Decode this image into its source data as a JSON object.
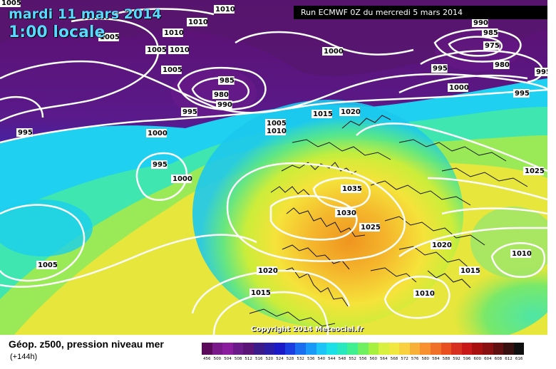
{
  "header": {
    "date": "mardi 11 mars 2014",
    "time": "1:00 locale",
    "run": "Run ECMWF 0Z du mercredi 5 mars 2014"
  },
  "footer": {
    "title": "Géop. z500, pression niveau mer",
    "subtitle": "(+144h)",
    "copyright": "Copyright 2014 Meteociel.fr"
  },
  "scale": {
    "labels": [
      "456",
      "500",
      "504",
      "508",
      "512",
      "516",
      "520",
      "524",
      "528",
      "532",
      "536",
      "540",
      "544",
      "548",
      "552",
      "556",
      "560",
      "564",
      "568",
      "572",
      "576",
      "580",
      "584",
      "588",
      "592",
      "596",
      "600",
      "604",
      "608",
      "612",
      "616"
    ],
    "colors": [
      "#5b0a5b",
      "#7a1a8a",
      "#8a1c9e",
      "#6b1a8a",
      "#5a1478",
      "#3b1a8a",
      "#2a1ea6",
      "#1a1ac8",
      "#1a3ee0",
      "#1a6ef0",
      "#1a9af8",
      "#1cc4f8",
      "#1ce0e8",
      "#28e8c0",
      "#40f090",
      "#70f060",
      "#a8f040",
      "#d8f040",
      "#f0e840",
      "#f8d040",
      "#f8b038",
      "#f89030",
      "#f07028",
      "#e85020",
      "#d83020",
      "#c81818",
      "#a81010",
      "#881010",
      "#601010",
      "#381010",
      "#101010"
    ]
  },
  "isobars": [
    {
      "label": "1005",
      "tag": "tl"
    },
    {
      "label": "1005",
      "tag": "a"
    },
    {
      "label": "1010",
      "tag": "b"
    },
    {
      "label": "1010",
      "tag": "c"
    },
    {
      "label": "1005",
      "tag": "d"
    },
    {
      "label": "1010",
      "tag": "e"
    },
    {
      "label": "1010",
      "tag": "f"
    },
    {
      "label": "1005",
      "tag": "g"
    },
    {
      "label": "1005",
      "tag": "h"
    },
    {
      "label": "985",
      "tag": "i"
    },
    {
      "label": "980",
      "tag": "j"
    },
    {
      "label": "990",
      "tag": "k"
    },
    {
      "label": "995",
      "tag": "l"
    },
    {
      "label": "995",
      "tag": "m"
    },
    {
      "label": "1000",
      "tag": "n"
    },
    {
      "label": "995",
      "tag": "o"
    },
    {
      "label": "1000",
      "tag": "p"
    },
    {
      "label": "1005",
      "tag": "q"
    },
    {
      "label": "1010",
      "tag": "r"
    },
    {
      "label": "1015",
      "tag": "s"
    },
    {
      "label": "1020",
      "tag": "t"
    },
    {
      "label": "1000",
      "tag": "u"
    },
    {
      "label": "990",
      "tag": "v"
    },
    {
      "label": "985",
      "tag": "w"
    },
    {
      "label": "975",
      "tag": "x"
    },
    {
      "label": "980",
      "tag": "y"
    },
    {
      "label": "995",
      "tag": "z"
    },
    {
      "label": "995",
      "tag": "aa"
    },
    {
      "label": "1000",
      "tag": "ab"
    },
    {
      "label": "995",
      "tag": "ac"
    },
    {
      "label": "1035",
      "tag": "ad"
    },
    {
      "label": "1030",
      "tag": "ae"
    },
    {
      "label": "1025",
      "tag": "af"
    },
    {
      "label": "1025",
      "tag": "ag"
    },
    {
      "label": "1020",
      "tag": "ah"
    },
    {
      "label": "1015",
      "tag": "ai"
    },
    {
      "label": "1010",
      "tag": "aj"
    },
    {
      "label": "1010",
      "tag": "ak"
    },
    {
      "label": "1020",
      "tag": "al"
    },
    {
      "label": "1015",
      "tag": "am"
    },
    {
      "label": "1005",
      "tag": "an"
    }
  ]
}
